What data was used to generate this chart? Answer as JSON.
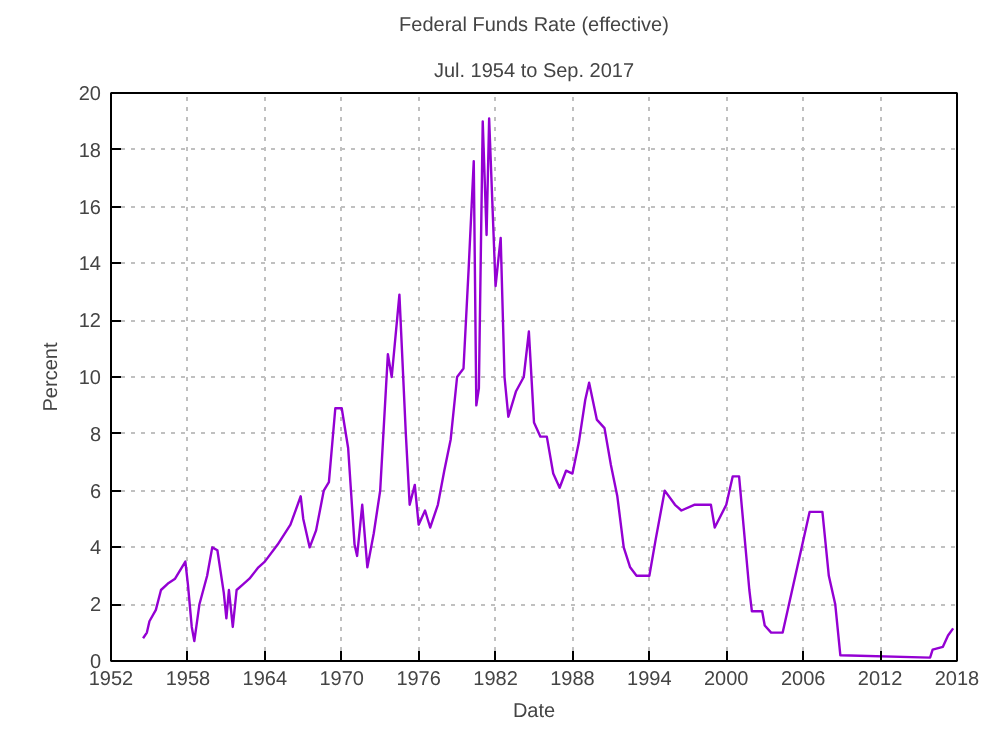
{
  "chart_data": {
    "type": "line",
    "title": "Federal Funds Rate (effective)",
    "subtitle": "Jul. 1954 to Sep. 2017",
    "xlabel": "Date",
    "ylabel": "Percent",
    "x": [
      1954.5,
      1954.8,
      1955.0,
      1955.5,
      1955.9,
      1956.5,
      1957.0,
      1957.8,
      1958.0,
      1958.3,
      1958.5,
      1958.9,
      1959.5,
      1959.9,
      1960.3,
      1960.8,
      1961.0,
      1961.2,
      1961.5,
      1961.8,
      1962.3,
      1962.8,
      1963.5,
      1964.0,
      1965.0,
      1966.0,
      1966.8,
      1967.0,
      1967.5,
      1968.0,
      1968.6,
      1969.0,
      1969.5,
      1970.0,
      1970.5,
      1971.0,
      1971.2,
      1971.6,
      1972.0,
      1972.5,
      1973.0,
      1973.6,
      1973.9,
      1974.5,
      1975.0,
      1975.3,
      1975.7,
      1976.0,
      1976.5,
      1976.9,
      1977.5,
      1978.0,
      1978.5,
      1979.0,
      1979.5,
      1979.9,
      1980.3,
      1980.5,
      1980.7,
      1981.0,
      1981.3,
      1981.5,
      1982.0,
      1982.4,
      1982.7,
      1983.0,
      1983.6,
      1984.2,
      1984.6,
      1985.0,
      1985.5,
      1986.0,
      1986.5,
      1987.0,
      1987.5,
      1988.0,
      1988.5,
      1989.0,
      1989.3,
      1989.9,
      1990.5,
      1991.0,
      1991.5,
      1992.0,
      1992.5,
      1993.0,
      1994.0,
      1994.5,
      1995.2,
      1996.0,
      1996.5,
      1997.5,
      1998.8,
      1999.1,
      2000.0,
      2000.5,
      2001.0,
      2001.8,
      2002.0,
      2002.8,
      2003.0,
      2003.5,
      2004.4,
      2006.5,
      2007.5,
      2008.0,
      2008.5,
      2008.9,
      2015.9,
      2016.1,
      2016.9,
      2017.3,
      2017.7
    ],
    "series": [
      {
        "color": "#9400d3",
        "values": [
          0.8,
          1.0,
          1.4,
          1.8,
          2.5,
          2.75,
          2.9,
          3.5,
          2.7,
          1.2,
          0.7,
          2.0,
          3.0,
          4.0,
          3.9,
          2.4,
          1.5,
          2.5,
          1.2,
          2.5,
          2.7,
          2.9,
          3.3,
          3.5,
          4.1,
          4.8,
          5.8,
          5.0,
          4.0,
          4.6,
          6.0,
          6.3,
          8.9,
          8.9,
          7.5,
          4.1,
          3.7,
          5.5,
          3.3,
          4.5,
          6.0,
          10.8,
          10.0,
          12.9,
          8.0,
          5.5,
          6.2,
          4.8,
          5.3,
          4.7,
          5.5,
          6.7,
          7.8,
          10.0,
          10.3,
          13.8,
          17.6,
          9.0,
          9.6,
          19.0,
          15.0,
          19.1,
          13.2,
          14.9,
          10.0,
          8.6,
          9.5,
          10.0,
          11.6,
          8.4,
          7.9,
          7.9,
          6.6,
          6.1,
          6.7,
          6.6,
          7.7,
          9.2,
          9.8,
          8.5,
          8.2,
          6.9,
          5.8,
          4.0,
          3.3,
          3.0,
          3.0,
          4.3,
          6.0,
          5.5,
          5.3,
          5.5,
          5.5,
          4.7,
          5.5,
          6.5,
          6.5,
          2.5,
          1.75,
          1.75,
          1.25,
          1.0,
          1.0,
          5.25,
          5.25,
          3.0,
          2.0,
          0.2,
          0.12,
          0.4,
          0.5,
          0.9,
          1.15
        ]
      }
    ],
    "xlim": [
      1952,
      2018
    ],
    "xticks": [
      1952,
      1958,
      1964,
      1970,
      1976,
      1982,
      1988,
      1994,
      2000,
      2006,
      2012,
      2018
    ],
    "ylim": [
      0,
      20
    ],
    "yticks": [
      0,
      2,
      4,
      6,
      8,
      10,
      12,
      14,
      16,
      18,
      20
    ],
    "grid": true,
    "line_style": "solid"
  }
}
